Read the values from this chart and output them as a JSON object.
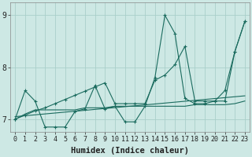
{
  "xlabel": "Humidex (Indice chaleur)",
  "xlim": [
    -0.5,
    23.5
  ],
  "ylim": [
    6.75,
    9.25
  ],
  "yticks": [
    7,
    8,
    9
  ],
  "xticks": [
    0,
    1,
    2,
    3,
    4,
    5,
    6,
    7,
    8,
    9,
    10,
    11,
    12,
    13,
    14,
    15,
    16,
    17,
    18,
    19,
    20,
    21,
    22,
    23
  ],
  "background_color": "#cde8e4",
  "grid_color": "#aacfca",
  "line_color": "#1a6b5e",
  "lines": [
    {
      "x": [
        0,
        1,
        2,
        3,
        4,
        5,
        6,
        7,
        8,
        9,
        10,
        11,
        12,
        13,
        14,
        15,
        16,
        17,
        18,
        19,
        20,
        21,
        22,
        23
      ],
      "y": [
        7.0,
        7.55,
        7.35,
        6.85,
        6.85,
        6.85,
        7.15,
        7.2,
        7.65,
        7.2,
        7.25,
        6.95,
        6.95,
        7.25,
        7.8,
        9.0,
        8.65,
        7.4,
        7.3,
        7.3,
        7.35,
        7.55,
        8.3,
        8.88
      ],
      "marker": true
    },
    {
      "x": [
        0,
        1,
        2,
        3,
        4,
        5,
        6,
        7,
        8,
        9,
        10,
        11,
        12,
        13,
        14,
        15,
        16,
        17,
        18,
        19,
        20,
        21,
        22,
        23
      ],
      "y": [
        7.0,
        7.08,
        7.16,
        7.22,
        7.3,
        7.38,
        7.46,
        7.54,
        7.62,
        7.7,
        7.3,
        7.3,
        7.3,
        7.3,
        7.75,
        7.85,
        8.05,
        8.4,
        7.35,
        7.35,
        7.35,
        7.35,
        8.3,
        8.88
      ],
      "marker": true
    },
    {
      "x": [
        0,
        1,
        2,
        3,
        4,
        5,
        6,
        7,
        8,
        9,
        10,
        11,
        12,
        13,
        14,
        15,
        16,
        17,
        18,
        19,
        20,
        21,
        22,
        23
      ],
      "y": [
        7.0,
        7.1,
        7.18,
        7.18,
        7.18,
        7.18,
        7.18,
        7.22,
        7.22,
        7.22,
        7.25,
        7.25,
        7.25,
        7.25,
        7.25,
        7.25,
        7.25,
        7.25,
        7.28,
        7.28,
        7.28,
        7.28,
        7.3,
        7.35
      ],
      "marker": false
    },
    {
      "x": [
        0,
        23
      ],
      "y": [
        7.05,
        7.45
      ],
      "marker": false
    }
  ],
  "font_color": "#222222",
  "tick_fontsize": 6,
  "label_fontsize": 7.5
}
